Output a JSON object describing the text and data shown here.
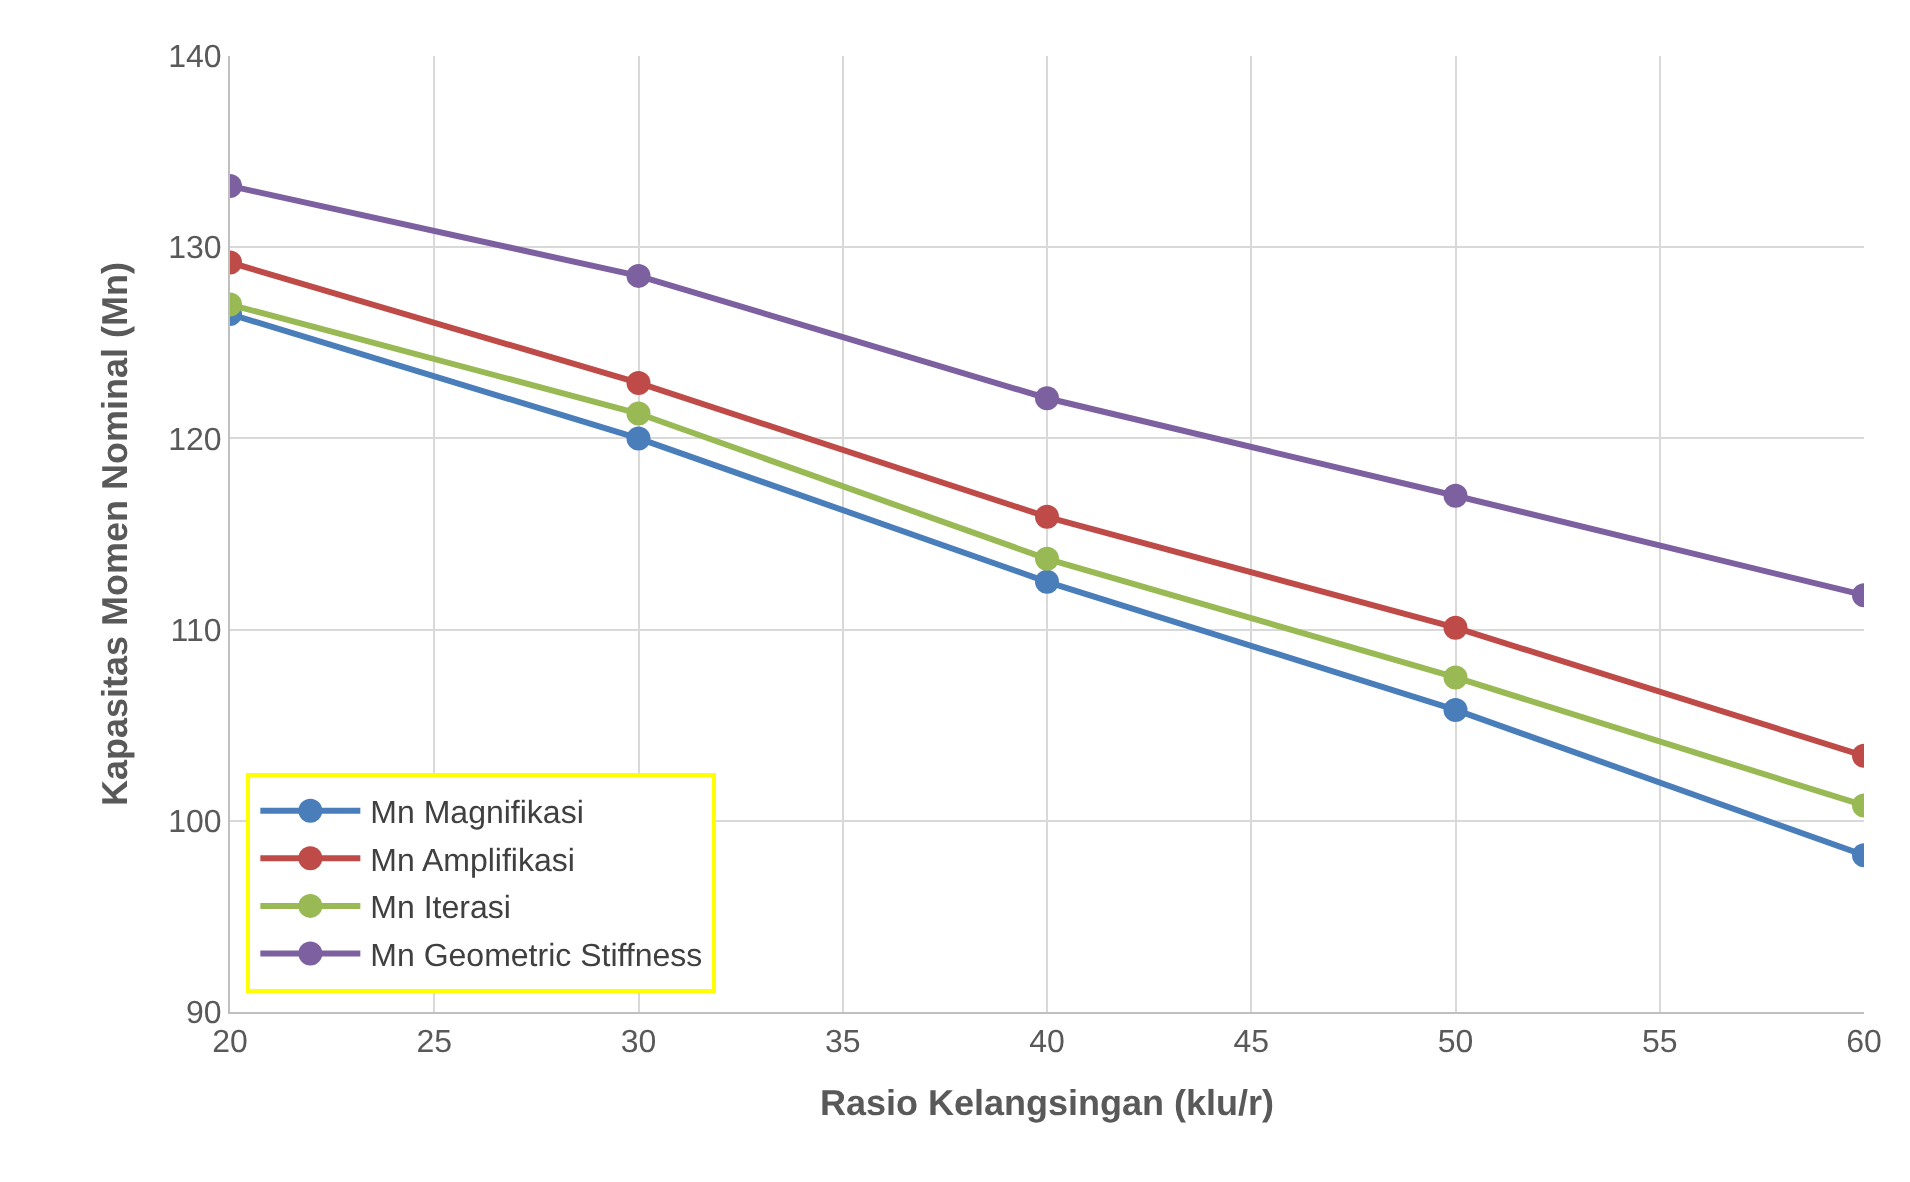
{
  "chart_data": {
    "type": "line",
    "xlabel": "Rasio Kelangsingan (klu/r)",
    "ylabel": "Kapasitas Momen Nominal (Mn)",
    "x": [
      20,
      30,
      40,
      50,
      60
    ],
    "series": [
      {
        "name": "Mn Magnifikasi",
        "color": "#4a7ebb",
        "values": [
          126.5,
          120.0,
          112.5,
          105.8,
          98.2
        ]
      },
      {
        "name": "Mn Amplifikasi",
        "color": "#be4b48",
        "values": [
          129.2,
          122.9,
          115.9,
          110.1,
          103.4
        ]
      },
      {
        "name": "Mn Iterasi",
        "color": "#98b954",
        "values": [
          127.0,
          121.3,
          113.7,
          107.5,
          100.8
        ]
      },
      {
        "name": "Mn Geometric Stiffness",
        "color": "#7d60a0",
        "values": [
          133.2,
          128.5,
          122.1,
          117.0,
          111.8
        ]
      }
    ],
    "xlim": [
      20,
      60
    ],
    "xticks": [
      20,
      25,
      30,
      35,
      40,
      45,
      50,
      55,
      60
    ],
    "ylim": [
      90,
      140
    ],
    "yticks": [
      90,
      100,
      110,
      120,
      130,
      140
    ],
    "grid": true,
    "legend": "bottom left",
    "marker": "circle",
    "line_style": "solid"
  }
}
